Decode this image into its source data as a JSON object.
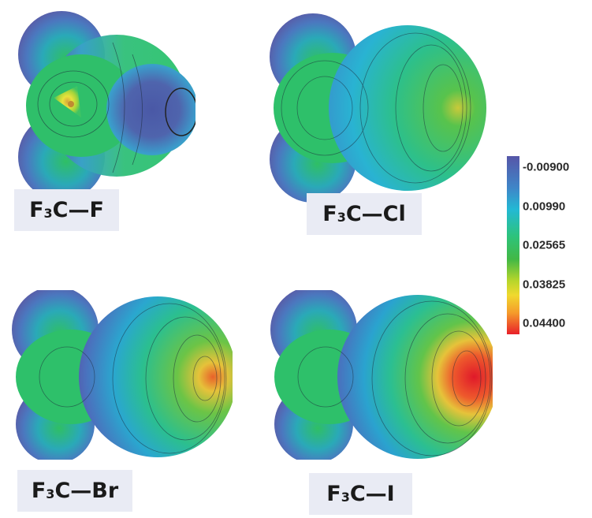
{
  "molecules": [
    {
      "formula": {
        "pre": "F",
        "sub": "3",
        "post": "C—F"
      }
    },
    {
      "formula": {
        "pre": "F",
        "sub": "3",
        "post": "C—Cl"
      }
    },
    {
      "formula": {
        "pre": "F",
        "sub": "3",
        "post": "C—Br"
      }
    },
    {
      "formula": {
        "pre": "F",
        "sub": "3",
        "post": "C—I"
      }
    }
  ],
  "colorbar": {
    "labels": [
      "-0.00900",
      "0.00990",
      "0.02565",
      "0.03825",
      "0.04400"
    ]
  },
  "colors": {
    "purple": "#5b5aa6",
    "blue": "#3d8fd0",
    "cyan": "#2bbfd5",
    "green": "#2fbf64",
    "yellow": "#e6dc3a",
    "orange": "#f08a2a",
    "red": "#e3222c",
    "label_bg": "#e9ebf4"
  }
}
